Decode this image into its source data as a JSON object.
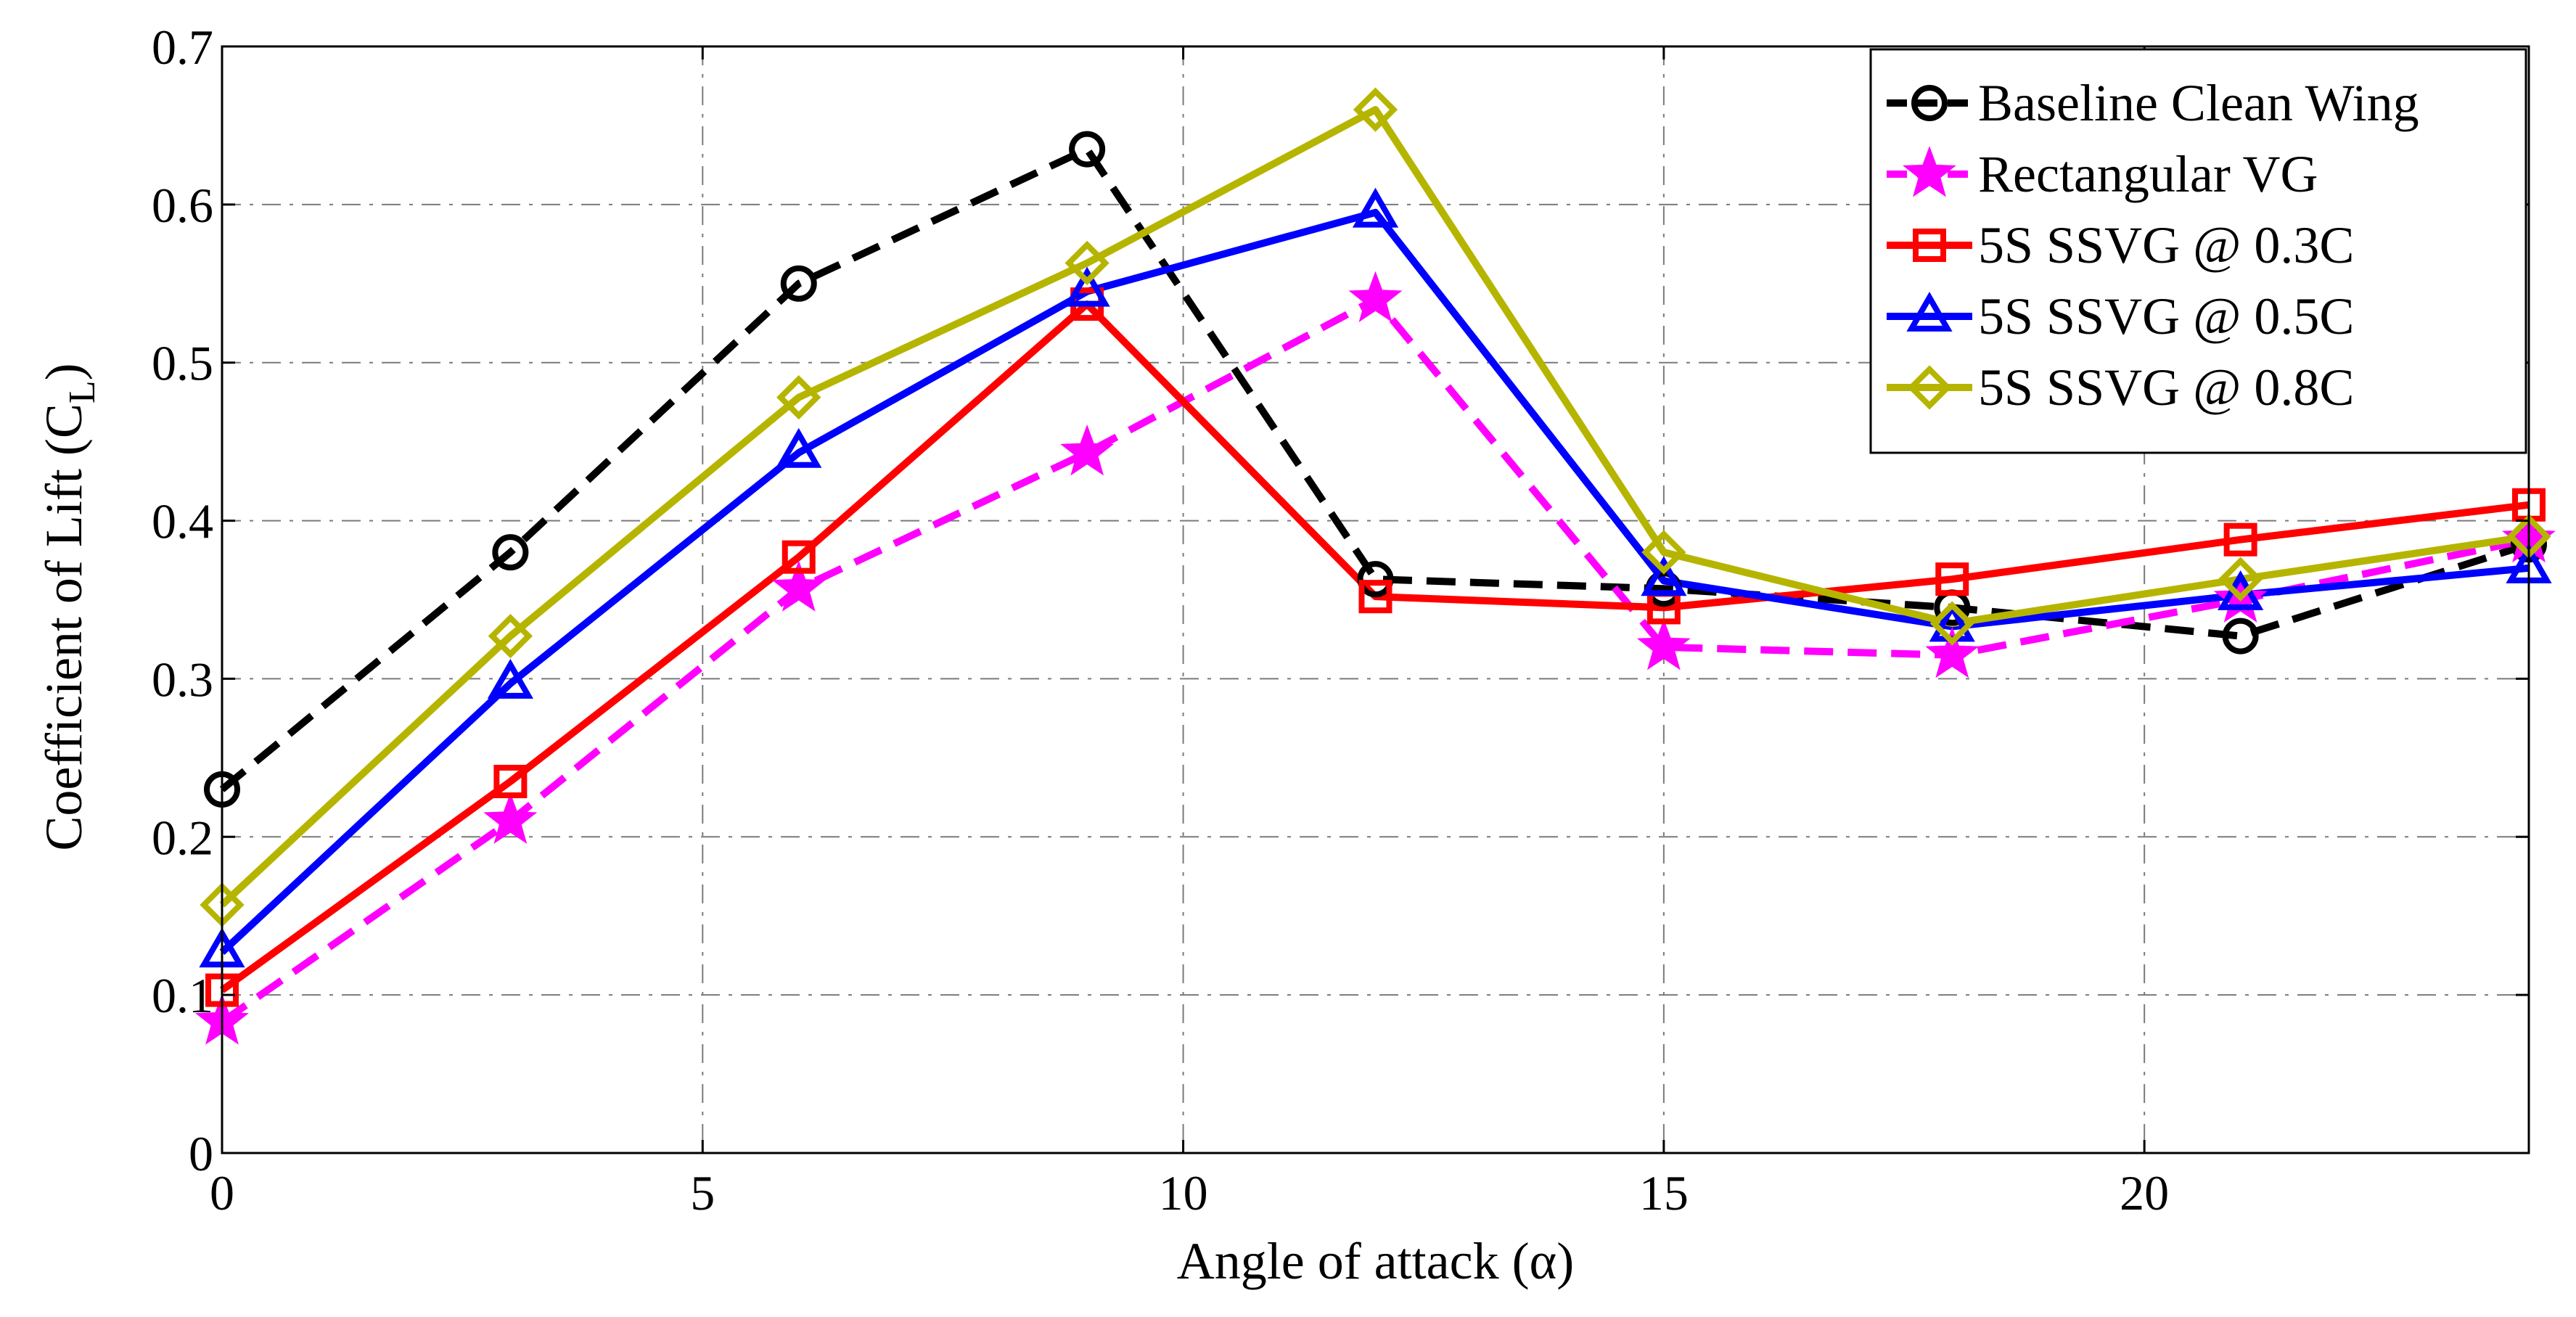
{
  "chart_data": {
    "type": "line",
    "title": "",
    "xlabel": "Angle of attack (α)",
    "ylabel_main": "Coefficient of Lift (C",
    "ylabel_sub": "L",
    "ylabel_end": ")",
    "xlim": [
      0,
      24
    ],
    "ylim": [
      0,
      0.7
    ],
    "xticks": [
      0,
      5,
      10,
      15,
      20
    ],
    "xtick_labels": [
      "0",
      "5",
      "10",
      "15",
      "20"
    ],
    "yticks": [
      0,
      0.1,
      0.2,
      0.3,
      0.4,
      0.5,
      0.6,
      0.7
    ],
    "ytick_labels": [
      "0",
      "0.1",
      "0.2",
      "0.3",
      "0.4",
      "0.5",
      "0.6",
      "0.7"
    ],
    "grid": true,
    "legend_position": "top-right",
    "x": [
      0,
      3,
      6,
      9,
      12,
      15,
      18,
      21,
      24
    ],
    "series": [
      {
        "name": "Baseline Clean Wing",
        "color": "#000000",
        "dash": "dashed",
        "marker": "circle",
        "values": [
          0.23,
          0.38,
          0.55,
          0.635,
          0.363,
          0.357,
          0.345,
          0.327,
          0.385
        ]
      },
      {
        "name": "Rectangular VG",
        "color": "#ff00ff",
        "dash": "dashed",
        "marker": "star",
        "values": [
          0.083,
          0.21,
          0.357,
          0.443,
          0.54,
          0.32,
          0.315,
          0.35,
          0.388
        ]
      },
      {
        "name": "5S SSVG @ 0.3C",
        "color": "#ff0000",
        "dash": "solid",
        "marker": "square",
        "values": [
          0.103,
          0.235,
          0.377,
          0.537,
          0.352,
          0.345,
          0.363,
          0.388,
          0.41
        ]
      },
      {
        "name": "5S SSVG @ 0.5C",
        "color": "#0000ff",
        "dash": "solid",
        "marker": "triangle",
        "values": [
          0.127,
          0.297,
          0.443,
          0.545,
          0.595,
          0.362,
          0.333,
          0.353,
          0.37
        ]
      },
      {
        "name": "5S SSVG @ 0.8C",
        "color": "#b5b500",
        "dash": "solid",
        "marker": "diamond",
        "values": [
          0.157,
          0.327,
          0.478,
          0.563,
          0.66,
          0.38,
          0.335,
          0.363,
          0.39
        ]
      }
    ]
  }
}
